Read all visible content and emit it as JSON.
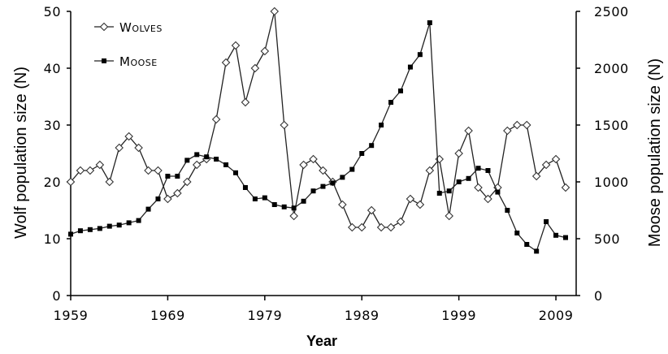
{
  "chart_data": {
    "type": "line",
    "xlabel": "Year",
    "ylabel_left": "Wolf population size (N)",
    "ylabel_right": "Moose population size (N)",
    "xlim": [
      1959,
      2011
    ],
    "ylim_left": [
      0,
      50
    ],
    "ylim_right": [
      0,
      2500
    ],
    "xticks": [
      1959,
      1969,
      1979,
      1989,
      1999,
      2009
    ],
    "yticks_left": [
      0,
      10,
      20,
      30,
      40,
      50
    ],
    "yticks_right": [
      0,
      500,
      1000,
      1500,
      2000,
      2500
    ],
    "grid": false,
    "legend_position": "top-left",
    "x": [
      1959,
      1960,
      1961,
      1962,
      1963,
      1964,
      1965,
      1966,
      1967,
      1968,
      1969,
      1970,
      1971,
      1972,
      1973,
      1974,
      1975,
      1976,
      1977,
      1978,
      1979,
      1980,
      1981,
      1982,
      1983,
      1984,
      1985,
      1986,
      1987,
      1988,
      1989,
      1990,
      1991,
      1992,
      1993,
      1994,
      1995,
      1996,
      1997,
      1998,
      1999,
      2000,
      2001,
      2002,
      2003,
      2004,
      2005,
      2006,
      2007,
      2008,
      2009,
      2010
    ],
    "series": [
      {
        "name": "Wolves",
        "axis": "left",
        "marker": "open-diamond",
        "values": [
          20,
          22,
          22,
          23,
          20,
          26,
          28,
          26,
          22,
          22,
          17,
          18,
          20,
          23,
          24,
          31,
          41,
          44,
          34,
          40,
          43,
          50,
          30,
          14,
          23,
          24,
          22,
          20,
          16,
          12,
          12,
          15,
          12,
          12,
          13,
          17,
          16,
          22,
          24,
          14,
          25,
          29,
          19,
          17,
          19,
          29,
          30,
          30,
          21,
          23,
          24,
          19
        ]
      },
      {
        "name": "Moose",
        "axis": "right",
        "marker": "filled-square",
        "values": [
          540,
          570,
          580,
          590,
          610,
          620,
          640,
          660,
          760,
          850,
          1050,
          1050,
          1190,
          1240,
          1220,
          1200,
          1150,
          1080,
          950,
          850,
          860,
          800,
          780,
          770,
          830,
          920,
          960,
          990,
          1040,
          1110,
          1250,
          1320,
          1500,
          1700,
          1800,
          2010,
          2120,
          2400,
          900,
          920,
          1000,
          1030,
          1120,
          1100,
          910,
          750,
          550,
          450,
          390,
          650,
          530,
          510
        ]
      }
    ]
  }
}
